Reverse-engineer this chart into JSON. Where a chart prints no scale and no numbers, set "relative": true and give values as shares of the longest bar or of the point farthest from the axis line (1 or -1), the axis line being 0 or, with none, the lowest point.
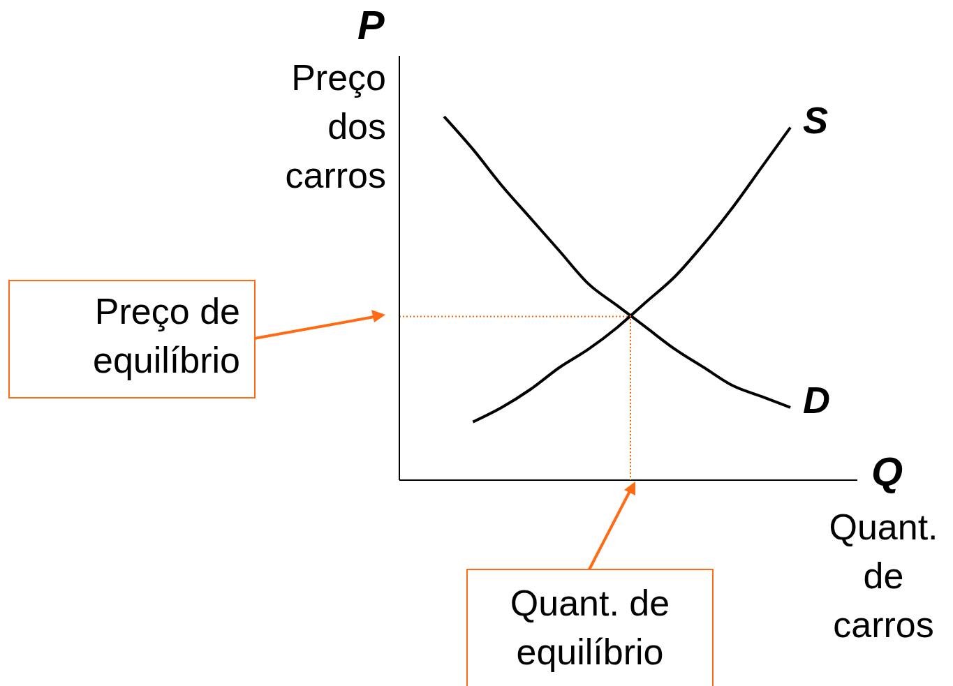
{
  "chart_data": {
    "type": "line",
    "relative": true,
    "xlabel": "Q",
    "ylabel": "P",
    "categories": [
      null,
      null,
      null,
      null,
      null,
      null,
      null,
      null,
      null,
      null,
      null,
      null,
      null
    ],
    "series": [
      {
        "name": "D",
        "color": "#000000",
        "values": [
          1.0,
          0.91,
          0.81,
          0.72,
          0.63,
          0.54,
          0.48,
          0.42,
          0.36,
          0.31,
          0.26,
          0.23,
          0.2
        ]
      },
      {
        "name": "S",
        "color": "#000000",
        "values": [
          null,
          0.16,
          0.2,
          0.25,
          0.31,
          0.36,
          0.42,
          0.49,
          0.56,
          0.65,
          0.75,
          0.86,
          0.97
        ]
      }
    ],
    "ref_lines": [
      {
        "axis": "y",
        "value": 0.45,
        "color": "#ff6600",
        "line_style": "dotted"
      }
    ],
    "annotations": [
      "Preço dos carros",
      "Quant. de carros",
      "Preço de equilíbrio",
      "Quant. de equilíbrio"
    ],
    "marker": "none",
    "line_style": "solid"
  }
}
